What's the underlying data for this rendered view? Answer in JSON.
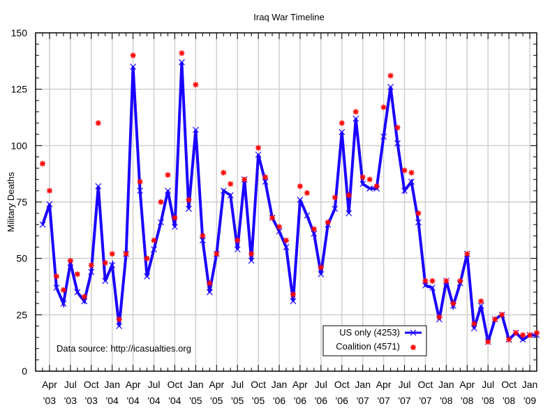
{
  "chart_data": {
    "type": "line",
    "title": "Iraq War Timeline",
    "xlabel": "",
    "ylabel": "Military Deaths",
    "ylim": [
      0,
      150
    ],
    "yticks": [
      0,
      25,
      50,
      75,
      100,
      125,
      150
    ],
    "grid": true,
    "x_start": "Mar 2003",
    "x_end": "Feb 2009",
    "x_interval": "monthly",
    "xticks": [
      {
        "month": "Apr",
        "year": "'03"
      },
      {
        "month": "Jul",
        "year": "'03"
      },
      {
        "month": "Oct",
        "year": "'03"
      },
      {
        "month": "Jan",
        "year": "'04"
      },
      {
        "month": "Apr",
        "year": "'04"
      },
      {
        "month": "Jul",
        "year": "'04"
      },
      {
        "month": "Oct",
        "year": "'04"
      },
      {
        "month": "Jan",
        "year": "'05"
      },
      {
        "month": "Apr",
        "year": "'05"
      },
      {
        "month": "Jul",
        "year": "'05"
      },
      {
        "month": "Oct",
        "year": "'05"
      },
      {
        "month": "Jan",
        "year": "'06"
      },
      {
        "month": "Apr",
        "year": "'06"
      },
      {
        "month": "Jul",
        "year": "'06"
      },
      {
        "month": "Oct",
        "year": "'06"
      },
      {
        "month": "Jan",
        "year": "'07"
      },
      {
        "month": "Apr",
        "year": "'07"
      },
      {
        "month": "Jul",
        "year": "'07"
      },
      {
        "month": "Oct",
        "year": "'07"
      },
      {
        "month": "Jan",
        "year": "'08"
      },
      {
        "month": "Apr",
        "year": "'08"
      },
      {
        "month": "Jul",
        "year": "'08"
      },
      {
        "month": "Oct",
        "year": "'08"
      },
      {
        "month": "Jan",
        "year": "'09"
      }
    ],
    "series": [
      {
        "name": "US only (4253)",
        "style": "line-with-x-markers",
        "color": "#1a00ff",
        "values": [
          65,
          74,
          37,
          30,
          48,
          35,
          31,
          44,
          82,
          40,
          47,
          20,
          52,
          135,
          80,
          42,
          54,
          66,
          80,
          64,
          137,
          72,
          107,
          58,
          35,
          52,
          80,
          78,
          54,
          85,
          49,
          96,
          84,
          68,
          62,
          55,
          31,
          76,
          69,
          61,
          43,
          65,
          72,
          106,
          70,
          112,
          83,
          81,
          81,
          104,
          126,
          101,
          80,
          84,
          66,
          38,
          37,
          23,
          40,
          29,
          39,
          52,
          19,
          29,
          13,
          23,
          25,
          14,
          17,
          14,
          16,
          16
        ]
      },
      {
        "name": "Coalition (4571)",
        "style": "asterisk-markers",
        "color": "#ff0000",
        "values": [
          92,
          80,
          42,
          36,
          49,
          43,
          33,
          47,
          110,
          48,
          52,
          23,
          52,
          140,
          84,
          50,
          58,
          75,
          87,
          68,
          141,
          76,
          127,
          60,
          39,
          52,
          88,
          83,
          58,
          85,
          52,
          99,
          86,
          68,
          64,
          58,
          34,
          82,
          79,
          63,
          46,
          66,
          77,
          110,
          78,
          115,
          86,
          85,
          82,
          117,
          131,
          108,
          89,
          88,
          70,
          40,
          40,
          24,
          40,
          30,
          40,
          52,
          21,
          31,
          13,
          23,
          25,
          14,
          17,
          16,
          16,
          17
        ]
      }
    ],
    "legend": {
      "placement": "bottom-right",
      "entries": [
        "US only (4253)",
        "Coalition (4571)"
      ]
    },
    "annotations": [
      "Data source: http://icasualties.org"
    ]
  }
}
